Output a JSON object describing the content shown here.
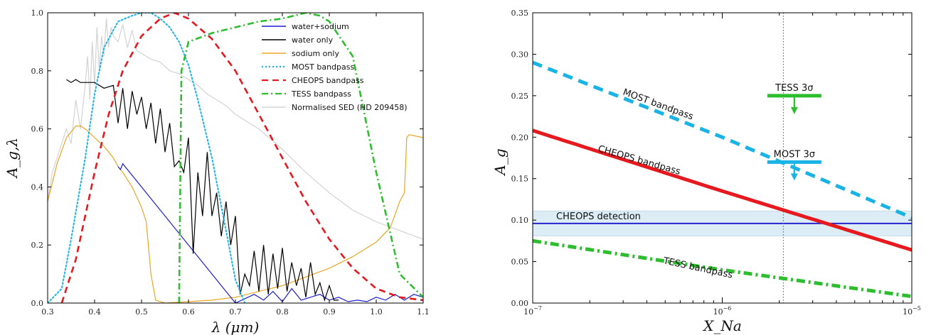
{
  "chart_data": [
    {
      "type": "line",
      "xlabel": "λ (μm)",
      "ylabel": "A_g,λ",
      "xlim": [
        0.3,
        1.1
      ],
      "ylim": [
        0.0,
        1.0
      ],
      "xticks": [
        "0.3",
        "0.4",
        "0.5",
        "0.6",
        "0.7",
        "0.8",
        "0.9",
        "1.0",
        "1.1"
      ],
      "yticks": [
        "0.0",
        "0.2",
        "0.4",
        "0.6",
        "0.8",
        "1.0"
      ],
      "legend_position": "top-right",
      "series": [
        {
          "name": "Normalised SED (HD 209458)",
          "color": "#d3d3d3",
          "style": "solid",
          "x": [
            0.3,
            0.31,
            0.32,
            0.33,
            0.34,
            0.35,
            0.36,
            0.37,
            0.38,
            0.385,
            0.39,
            0.395,
            0.4,
            0.405,
            0.41,
            0.415,
            0.42,
            0.425,
            0.43,
            0.435,
            0.44,
            0.45,
            0.46,
            0.47,
            0.48,
            0.49,
            0.5,
            0.52,
            0.54,
            0.56,
            0.58,
            0.6,
            0.62,
            0.64,
            0.66,
            0.68,
            0.7,
            0.75,
            0.8,
            0.85,
            0.9,
            0.95,
            1.0,
            1.05,
            1.1
          ],
          "y": [
            0.35,
            0.45,
            0.5,
            0.55,
            0.6,
            0.55,
            0.7,
            0.6,
            0.75,
            0.85,
            0.7,
            0.9,
            0.75,
            0.95,
            0.8,
            0.92,
            0.85,
            0.98,
            0.88,
            0.95,
            0.92,
            0.9,
            0.96,
            0.88,
            0.94,
            0.87,
            0.86,
            0.84,
            0.83,
            0.8,
            0.79,
            0.77,
            0.75,
            0.72,
            0.7,
            0.68,
            0.65,
            0.6,
            0.53,
            0.45,
            0.38,
            0.32,
            0.28,
            0.25,
            0.22
          ]
        },
        {
          "name": "sodium only",
          "color": "#e8a624",
          "style": "solid",
          "x": [
            0.3,
            0.32,
            0.34,
            0.36,
            0.37,
            0.38,
            0.4,
            0.42,
            0.44,
            0.45,
            0.46,
            0.48,
            0.5,
            0.51,
            0.52,
            0.53,
            0.55,
            0.6,
            0.65,
            0.7,
            0.75,
            0.8,
            0.85,
            0.9,
            0.95,
            1.0,
            1.03,
            1.05,
            1.06,
            1.065,
            1.07,
            1.1
          ],
          "y": [
            0.35,
            0.48,
            0.57,
            0.61,
            0.61,
            0.6,
            0.57,
            0.54,
            0.5,
            0.47,
            0.45,
            0.4,
            0.33,
            0.28,
            0.1,
            0.01,
            0.0,
            0.005,
            0.01,
            0.02,
            0.04,
            0.06,
            0.09,
            0.12,
            0.16,
            0.21,
            0.26,
            0.35,
            0.38,
            0.57,
            0.58,
            0.57
          ]
        },
        {
          "name": "water+sodium",
          "color": "#1f1fd0",
          "style": "solid",
          "x": [
            0.45,
            0.455,
            0.46,
            0.7,
            0.72,
            0.74,
            0.76,
            0.78,
            0.8,
            0.82,
            0.84,
            0.86,
            0.88,
            0.9,
            0.92,
            0.94,
            0.96,
            0.98,
            1.0,
            1.02,
            1.04,
            1.06,
            1.08,
            1.1
          ],
          "y": [
            0.47,
            0.46,
            0.48,
            0.0,
            0.015,
            0.03,
            0.01,
            0.04,
            0.005,
            0.05,
            0.01,
            0.02,
            0.03,
            0.01,
            0.02,
            0.005,
            0.01,
            0.005,
            0.02,
            0.01,
            0.03,
            0.01,
            0.03,
            0.02
          ]
        },
        {
          "name": "water only",
          "color": "#000000",
          "style": "solid",
          "x": [
            0.34,
            0.35,
            0.36,
            0.37,
            0.38,
            0.4,
            0.42,
            0.44,
            0.45,
            0.46,
            0.47,
            0.48,
            0.49,
            0.5,
            0.51,
            0.52,
            0.53,
            0.54,
            0.55,
            0.56,
            0.57,
            0.58,
            0.59,
            0.6,
            0.61,
            0.62,
            0.63,
            0.64,
            0.65,
            0.66,
            0.67,
            0.68,
            0.69,
            0.7,
            0.71,
            0.72,
            0.73,
            0.74,
            0.75,
            0.76,
            0.77,
            0.78,
            0.79,
            0.8,
            0.81,
            0.82,
            0.83,
            0.84,
            0.85,
            0.86,
            0.87,
            0.88,
            0.89,
            0.9,
            0.91,
            0.92
          ],
          "y": [
            0.77,
            0.76,
            0.77,
            0.76,
            0.76,
            0.76,
            0.74,
            0.75,
            0.62,
            0.74,
            0.6,
            0.73,
            0.65,
            0.71,
            0.6,
            0.69,
            0.55,
            0.67,
            0.52,
            0.62,
            0.47,
            0.49,
            0.45,
            0.57,
            0.17,
            0.45,
            0.3,
            0.52,
            0.3,
            0.38,
            0.23,
            0.35,
            0.2,
            0.3,
            0.03,
            0.1,
            0.06,
            0.18,
            0.04,
            0.2,
            0.03,
            0.17,
            0.05,
            0.19,
            0.04,
            0.14,
            0.06,
            0.12,
            0.02,
            0.14,
            0.03,
            0.07,
            0.01,
            0.06,
            0.01,
            0.01
          ]
        },
        {
          "name": "MOST bandpass",
          "color": "#1ab3e6",
          "style": "dotted",
          "x": [
            0.3,
            0.33,
            0.35,
            0.38,
            0.4,
            0.42,
            0.45,
            0.48,
            0.5,
            0.52,
            0.54,
            0.56,
            0.58,
            0.6,
            0.62,
            0.65,
            0.68,
            0.7,
            0.72
          ],
          "y": [
            0.0,
            0.05,
            0.22,
            0.5,
            0.72,
            0.88,
            0.97,
            0.99,
            1.0,
            1.0,
            0.98,
            0.95,
            0.9,
            0.82,
            0.7,
            0.5,
            0.25,
            0.08,
            0.0
          ]
        },
        {
          "name": "CHEOPS bandpass",
          "color": "#e6191e",
          "style": "dashed",
          "x": [
            0.33,
            0.36,
            0.4,
            0.43,
            0.46,
            0.5,
            0.54,
            0.57,
            0.6,
            0.65,
            0.7,
            0.75,
            0.8,
            0.85,
            0.9,
            0.95,
            1.0,
            1.05,
            1.1
          ],
          "y": [
            0.0,
            0.15,
            0.45,
            0.65,
            0.8,
            0.92,
            0.98,
            1.0,
            0.98,
            0.91,
            0.8,
            0.65,
            0.5,
            0.35,
            0.22,
            0.12,
            0.05,
            0.02,
            0.01
          ]
        },
        {
          "name": "TESS bandpass",
          "color": "#2ebd2e",
          "style": "dash-dot",
          "x": [
            0.58,
            0.585,
            0.6,
            0.65,
            0.7,
            0.75,
            0.8,
            0.85,
            0.88,
            0.9,
            0.95,
            1.0,
            1.05,
            1.1
          ],
          "y": [
            0.0,
            0.8,
            0.9,
            0.93,
            0.95,
            0.97,
            0.98,
            1.0,
            0.99,
            0.97,
            0.85,
            0.45,
            0.1,
            0.02
          ]
        }
      ]
    },
    {
      "type": "line",
      "xlabel": "X_Na",
      "ylabel": "A_g",
      "xscale": "log",
      "xlim": [
        1e-07,
        1e-05
      ],
      "ylim": [
        0.0,
        0.35
      ],
      "xticks": [
        "10^-7",
        "10^-6",
        "10^-5"
      ],
      "yticks": [
        "0.00",
        "0.05",
        "0.10",
        "0.15",
        "0.20",
        "0.25",
        "0.30",
        "0.35"
      ],
      "vline_x": 2.1e-06,
      "series": [
        {
          "name": "MOST bandpass",
          "color": "#1ab3e6",
          "style": "dashed",
          "x": [
            1e-07,
            1e-06,
            1e-05
          ],
          "y": [
            0.29,
            0.2,
            0.103
          ]
        },
        {
          "name": "CHEOPS bandpass",
          "color": "#e6191e",
          "style": "solid",
          "x": [
            1e-07,
            1e-06,
            1e-05
          ],
          "y": [
            0.208,
            0.135,
            0.064
          ]
        },
        {
          "name": "TESS bandpass",
          "color": "#2ebd2e",
          "style": "dash-dot",
          "x": [
            1e-07,
            1e-06,
            1e-05
          ],
          "y": [
            0.075,
            0.04,
            0.008
          ]
        }
      ],
      "detection": {
        "label": "CHEOPS detection",
        "value": 0.096,
        "band": [
          0.081,
          0.111
        ],
        "color": "#1a1acc"
      },
      "upper_limits": [
        {
          "label": "TESS 3σ",
          "value": 0.25,
          "x": 2.4e-06,
          "color": "#2ebd2e"
        },
        {
          "label": "MOST 3σ",
          "value": 0.17,
          "x": 2.4e-06,
          "color": "#1ab3e6"
        }
      ],
      "curve_labels": [
        "MOST bandpass",
        "CHEOPS bandpass",
        "TESS bandpass"
      ]
    }
  ]
}
